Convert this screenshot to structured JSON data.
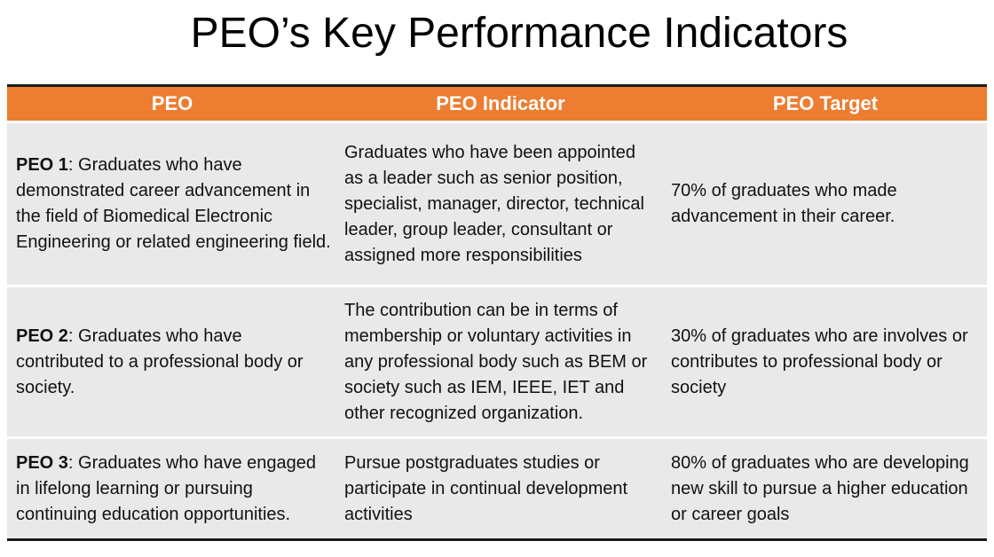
{
  "title": "PEO’s Key Performance Indicators",
  "table": {
    "headers": [
      "PEO",
      "PEO Indicator",
      "PEO Target"
    ],
    "rows": [
      {
        "peo_id": "PEO 1",
        "peo_text": ": Graduates who have demonstrated career advancement in the field of Biomedical Electronic Engineering or related engineering field.",
        "indicator": "Graduates who have been appointed as a leader such as senior position, specialist, manager, director, technical leader, group leader, consultant or assigned more responsibilities",
        "target": "70% of graduates who made advancement in their career."
      },
      {
        "peo_id": "PEO 2",
        "peo_text": ": Graduates who have contributed to a professional body or society.",
        "indicator": "The contribution can be in terms of membership or voluntary activities in any professional body such as BEM or society such as IEM, IEEE, IET and other recognized organization.",
        "target": "30% of graduates who are involves or contributes to professional body or society"
      },
      {
        "peo_id": "PEO 3",
        "peo_text": ": Graduates who have engaged in lifelong learning or pursuing continuing education opportunities.",
        "indicator": "Pursue postgraduates studies or participate in continual development activities",
        "target": "80% of graduates who are developing new skill to pursue a higher education or career goals"
      }
    ]
  },
  "colors": {
    "header_bg": "#ED7D31",
    "cell_bg": "#E9E9E9"
  }
}
